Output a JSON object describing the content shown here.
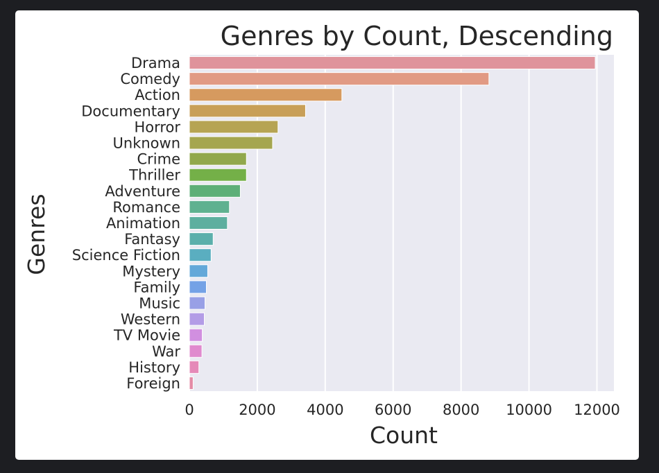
{
  "colors": {
    "background": "#1d1e22",
    "card": "#ffffff",
    "plot_area": "#eaeaf2",
    "grid": "#ffffff",
    "text": "#262626"
  },
  "chart_data": {
    "type": "bar",
    "orientation": "horizontal",
    "title": "Genres by Count, Descending",
    "xlabel": "Count",
    "ylabel": "Genres",
    "xlim": [
      0,
      12500
    ],
    "x_ticks": [
      0,
      2000,
      4000,
      6000,
      8000,
      10000,
      12000
    ],
    "x_tick_labels": [
      "0",
      "2000",
      "4000",
      "6000",
      "8000",
      "10000",
      "12000"
    ],
    "grid": "vertical",
    "categories": [
      "Drama",
      "Comedy",
      "Action",
      "Documentary",
      "Horror",
      "Unknown",
      "Crime",
      "Thriller",
      "Adventure",
      "Romance",
      "Animation",
      "Fantasy",
      "Science Fiction",
      "Mystery",
      "Family",
      "Music",
      "Western",
      "TV Movie",
      "War",
      "History",
      "Foreign"
    ],
    "values": [
      11950,
      8820,
      4490,
      3420,
      2610,
      2450,
      1680,
      1680,
      1500,
      1180,
      1120,
      700,
      640,
      540,
      500,
      460,
      440,
      380,
      370,
      280,
      110
    ],
    "bar_colors": [
      "#df939b",
      "#e19a84",
      "#d69a5f",
      "#c89f58",
      "#b6a453",
      "#a5a64f",
      "#91a84c",
      "#74b048",
      "#5daf78",
      "#5fb190",
      "#5daf9f",
      "#5bafab",
      "#5aaec0",
      "#63a8d9",
      "#74a2e6",
      "#98a0e6",
      "#b39ce6",
      "#d18fe0",
      "#e08ace",
      "#e58ab8",
      "#e48ba6"
    ]
  }
}
